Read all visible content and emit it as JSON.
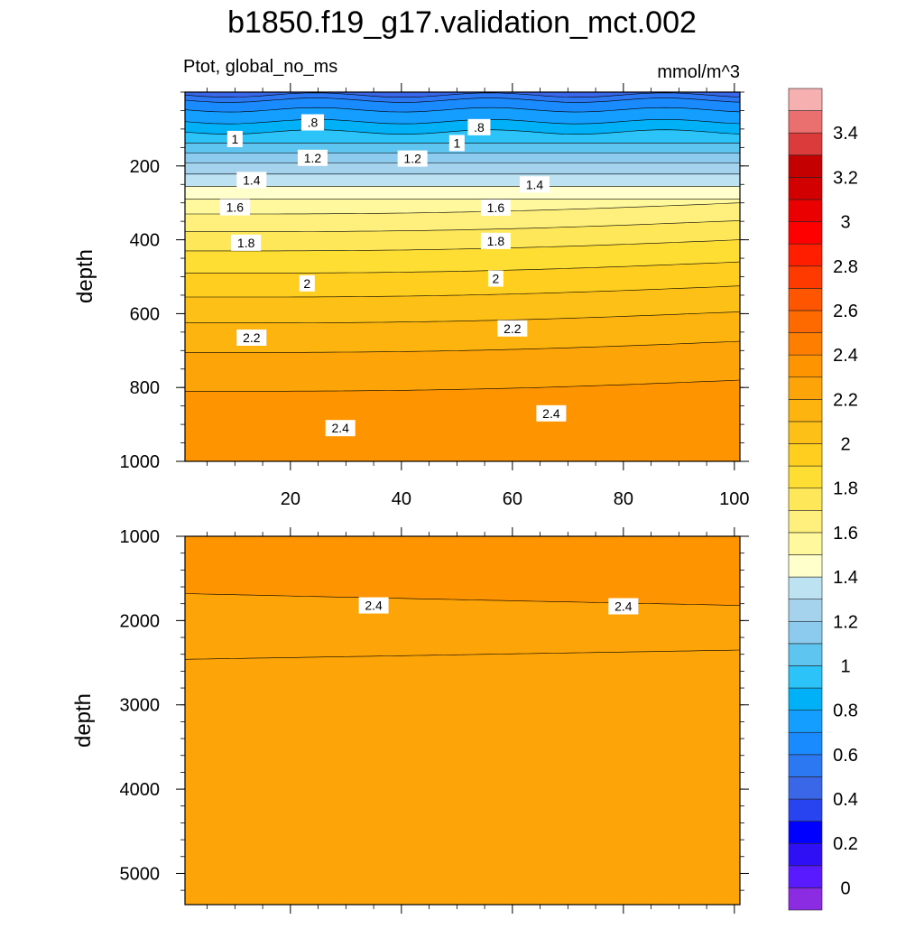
{
  "chart_data": {
    "type": "contour",
    "title": "b1850.f19_g17.validation_mct.002",
    "variable_label": "Ptot, global_no_ms",
    "units_label": "mmol/m^3",
    "ylabel": "depth",
    "xlim": [
      1,
      101
    ],
    "x_ticks": [
      "20",
      "40",
      "60",
      "80",
      "100"
    ],
    "panels": [
      {
        "name": "upper",
        "ylim": [
          0,
          1000
        ],
        "y_ticks": [
          "200",
          "400",
          "600",
          "800",
          "1000"
        ],
        "contour_labels": [
          {
            "text": ".8",
            "x": 24,
            "depth": 82
          },
          {
            "text": ".8",
            "x": 54,
            "depth": 95
          },
          {
            "text": "1",
            "x": 10,
            "depth": 127
          },
          {
            "text": "1",
            "x": 50,
            "depth": 138
          },
          {
            "text": "1.2",
            "x": 24,
            "depth": 178
          },
          {
            "text": "1.2",
            "x": 42,
            "depth": 180
          },
          {
            "text": "1.4",
            "x": 13,
            "depth": 238
          },
          {
            "text": "1.4",
            "x": 64,
            "depth": 250
          },
          {
            "text": "1.6",
            "x": 10,
            "depth": 312
          },
          {
            "text": "1.6",
            "x": 57,
            "depth": 313
          },
          {
            "text": "1.8",
            "x": 12,
            "depth": 408
          },
          {
            "text": "1.8",
            "x": 57,
            "depth": 403
          },
          {
            "text": "2",
            "x": 23,
            "depth": 518
          },
          {
            "text": "2",
            "x": 57,
            "depth": 505
          },
          {
            "text": "2.2",
            "x": 13,
            "depth": 665
          },
          {
            "text": "2.2",
            "x": 60,
            "depth": 640
          },
          {
            "text": "2.4",
            "x": 29,
            "depth": 910
          },
          {
            "text": "2.4",
            "x": 67,
            "depth": 870
          }
        ]
      },
      {
        "name": "lower",
        "ylim": [
          1000,
          5370
        ],
        "y_ticks": [
          "1000",
          "2000",
          "3000",
          "4000",
          "5000"
        ],
        "contour_labels": [
          {
            "text": "2.4",
            "x": 35,
            "depth": 1820
          },
          {
            "text": "2.4",
            "x": 80,
            "depth": 1830
          }
        ]
      }
    ],
    "colorbar": {
      "labels": [
        "0",
        "0.2",
        "0.4",
        "0.6",
        "0.8",
        "1",
        "1.2",
        "1.4",
        "1.6",
        "1.8",
        "2",
        "2.2",
        "2.4",
        "2.6",
        "2.8",
        "3",
        "3.2",
        "3.4"
      ],
      "colors": [
        "#8B2BE2",
        "#5A1AFF",
        "#2F10F5",
        "#0000FF",
        "#2844F0",
        "#3A67E8",
        "#2B78F2",
        "#1A8AFF",
        "#149EFF",
        "#00B1F7",
        "#2BC3F8",
        "#5EC5F0",
        "#8CCBEE",
        "#A5D3EE",
        "#BDE2F2",
        "#FFFFCC",
        "#FFF89C",
        "#FFF07D",
        "#FFE75A",
        "#FFDE34",
        "#FFCE1E",
        "#FDC017",
        "#FDB40F",
        "#FDA508",
        "#FE9500",
        "#FE7F00",
        "#FE6A00",
        "#FE5500",
        "#FF3A00",
        "#FF1F00",
        "#FF0000",
        "#EB0000",
        "#D30000",
        "#C40000",
        "#DC3B3B",
        "#EA6F6F",
        "#F7B0B0"
      ]
    }
  }
}
